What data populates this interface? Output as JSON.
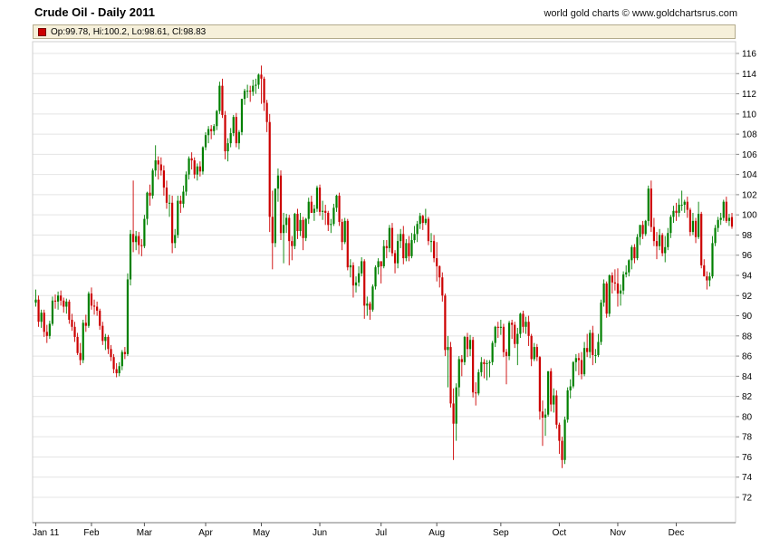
{
  "header": {
    "title": "Crude Oil - Daily 2011",
    "watermark": "world gold charts © www.goldchartsrus.com"
  },
  "legend": {
    "text": "Op:99.78, Hi:100.2, Lo:98.61, Cl:98.83",
    "swatch_color": "#cc0000"
  },
  "chart_data": {
    "type": "candlestick",
    "title": "Crude Oil - Daily 2011",
    "last_bar": {
      "open": 99.78,
      "high": 100.2,
      "low": 98.61,
      "close": 98.83
    },
    "y_axis": {
      "min": 72,
      "max": 116,
      "step": 2,
      "side": "right"
    },
    "x_axis": {
      "labels": [
        "Jan 11",
        "Feb",
        "Mar",
        "Apr",
        "May",
        "Jun",
        "Jul",
        "Aug",
        "Sep",
        "Oct",
        "Nov",
        "Dec"
      ],
      "month_start_indices": [
        0,
        20,
        39,
        61,
        81,
        102,
        124,
        144,
        167,
        188,
        209,
        230
      ]
    },
    "colors": {
      "up": "#008000",
      "down": "#cc0000",
      "grid": "#e4e4e4",
      "axis": "#7a7a7a",
      "border": "#cfcfcf",
      "text": "#000000"
    },
    "ohlc": [
      [
        91.3,
        92.6,
        90.9,
        91.6
      ],
      [
        91.6,
        92.0,
        88.9,
        89.4
      ],
      [
        89.4,
        90.6,
        88.8,
        90.3
      ],
      [
        90.3,
        90.6,
        87.9,
        88.4
      ],
      [
        88.4,
        89.1,
        87.3,
        88.0
      ],
      [
        88.0,
        89.5,
        87.7,
        89.2
      ],
      [
        89.2,
        91.9,
        89.0,
        91.5
      ],
      [
        91.5,
        92.1,
        90.7,
        91.4
      ],
      [
        91.4,
        92.4,
        90.6,
        92.0
      ],
      [
        92.0,
        92.5,
        91.0,
        91.5
      ],
      [
        91.5,
        91.8,
        90.3,
        90.9
      ],
      [
        90.9,
        91.7,
        90.2,
        91.4
      ],
      [
        91.4,
        91.6,
        89.2,
        89.6
      ],
      [
        89.6,
        90.2,
        88.5,
        88.9
      ],
      [
        88.9,
        89.4,
        87.4,
        87.9
      ],
      [
        87.9,
        88.3,
        86.1,
        86.3
      ],
      [
        86.3,
        87.3,
        85.1,
        85.6
      ],
      [
        85.6,
        89.6,
        85.3,
        89.3
      ],
      [
        89.3,
        90.1,
        88.4,
        89.0
      ],
      [
        89.0,
        92.4,
        88.8,
        92.2
      ],
      [
        92.2,
        92.8,
        90.6,
        91.0
      ],
      [
        91.0,
        91.6,
        90.1,
        90.9
      ],
      [
        90.9,
        91.4,
        90.0,
        90.5
      ],
      [
        90.5,
        90.7,
        88.6,
        89.0
      ],
      [
        89.0,
        89.4,
        87.1,
        87.5
      ],
      [
        87.5,
        88.2,
        86.6,
        87.9
      ],
      [
        87.9,
        88.1,
        86.2,
        86.7
      ],
      [
        86.7,
        87.1,
        85.5,
        85.9
      ],
      [
        85.9,
        86.2,
        84.3,
        84.7
      ],
      [
        84.7,
        85.3,
        83.9,
        84.3
      ],
      [
        84.3,
        85.4,
        84.0,
        85.0
      ],
      [
        85.0,
        86.6,
        84.6,
        86.4
      ],
      [
        86.4,
        86.9,
        85.7,
        86.2
      ],
      [
        86.2,
        94.2,
        86.0,
        93.6
      ],
      [
        93.6,
        98.5,
        93.0,
        98.1
      ],
      [
        98.1,
        103.4,
        96.3,
        97.3
      ],
      [
        97.3,
        98.4,
        96.5,
        97.9
      ],
      [
        97.9,
        98.3,
        96.1,
        97.0
      ],
      [
        97.0,
        97.6,
        95.9,
        96.9
      ],
      [
        96.9,
        100.0,
        96.7,
        99.6
      ],
      [
        99.6,
        102.3,
        99.0,
        102.2
      ],
      [
        102.2,
        103.0,
        100.9,
        101.9
      ],
      [
        101.9,
        104.6,
        101.6,
        104.4
      ],
      [
        104.4,
        106.9,
        103.8,
        105.4
      ],
      [
        105.4,
        105.8,
        103.5,
        105.0
      ],
      [
        105.0,
        105.7,
        103.9,
        104.4
      ],
      [
        104.4,
        104.9,
        101.9,
        102.7
      ],
      [
        102.7,
        103.4,
        100.6,
        101.2
      ],
      [
        101.2,
        102.0,
        99.8,
        101.2
      ],
      [
        101.2,
        101.9,
        96.2,
        97.2
      ],
      [
        97.2,
        98.6,
        96.7,
        98.0
      ],
      [
        98.0,
        101.9,
        97.7,
        101.4
      ],
      [
        101.4,
        101.9,
        100.2,
        101.1
      ],
      [
        101.1,
        102.9,
        100.7,
        102.3
      ],
      [
        102.3,
        104.3,
        101.9,
        104.0
      ],
      [
        104.0,
        105.8,
        103.5,
        105.6
      ],
      [
        105.6,
        106.2,
        104.5,
        105.4
      ],
      [
        105.4,
        105.7,
        103.6,
        104.0
      ],
      [
        104.0,
        105.1,
        103.4,
        104.8
      ],
      [
        104.8,
        105.3,
        103.8,
        104.3
      ],
      [
        104.3,
        106.8,
        104.0,
        106.7
      ],
      [
        106.7,
        108.2,
        106.4,
        107.9
      ],
      [
        107.9,
        108.8,
        107.1,
        108.5
      ],
      [
        108.5,
        108.9,
        107.5,
        108.3
      ],
      [
        108.3,
        109.0,
        107.9,
        108.8
      ],
      [
        108.8,
        110.4,
        108.4,
        110.3
      ],
      [
        110.3,
        113.2,
        110.0,
        112.8
      ],
      [
        112.8,
        113.5,
        109.6,
        109.9
      ],
      [
        109.9,
        110.3,
        105.5,
        106.3
      ],
      [
        106.3,
        107.6,
        105.3,
        107.1
      ],
      [
        107.1,
        108.6,
        106.7,
        108.1
      ],
      [
        108.1,
        109.9,
        107.8,
        109.7
      ],
      [
        109.7,
        110.1,
        106.7,
        107.1
      ],
      [
        107.1,
        108.4,
        106.5,
        108.2
      ],
      [
        108.2,
        111.5,
        107.9,
        111.5
      ],
      [
        111.5,
        112.5,
        110.9,
        112.3
      ],
      [
        112.3,
        112.9,
        111.6,
        112.3
      ],
      [
        112.3,
        112.8,
        111.2,
        112.2
      ],
      [
        112.2,
        113.4,
        111.8,
        112.8
      ],
      [
        112.8,
        113.5,
        112.0,
        112.9
      ],
      [
        112.9,
        114.0,
        112.5,
        113.9
      ],
      [
        113.9,
        114.8,
        111.0,
        113.5
      ],
      [
        113.5,
        113.7,
        110.3,
        111.1
      ],
      [
        111.1,
        111.4,
        108.2,
        109.2
      ],
      [
        109.2,
        110.0,
        98.3,
        99.8
      ],
      [
        99.8,
        102.4,
        94.6,
        97.2
      ],
      [
        97.2,
        102.6,
        96.8,
        102.6
      ],
      [
        102.6,
        104.6,
        101.3,
        103.9
      ],
      [
        103.9,
        104.4,
        97.5,
        98.2
      ],
      [
        98.2,
        100.2,
        95.2,
        99.0
      ],
      [
        99.0,
        100.1,
        98.2,
        99.7
      ],
      [
        99.7,
        100.0,
        95.0,
        97.4
      ],
      [
        97.4,
        97.9,
        95.5,
        96.9
      ],
      [
        96.9,
        100.2,
        96.6,
        100.1
      ],
      [
        100.1,
        100.6,
        97.6,
        98.4
      ],
      [
        98.4,
        100.2,
        97.9,
        99.5
      ],
      [
        99.5,
        99.8,
        96.5,
        97.7
      ],
      [
        97.7,
        99.7,
        97.4,
        99.6
      ],
      [
        99.6,
        101.7,
        99.1,
        101.3
      ],
      [
        101.3,
        101.9,
        100.2,
        100.2
      ],
      [
        100.2,
        101.0,
        99.4,
        100.6
      ],
      [
        100.6,
        102.9,
        100.3,
        102.7
      ],
      [
        102.7,
        103.0,
        99.9,
        100.3
      ],
      [
        100.3,
        101.4,
        99.5,
        100.4
      ],
      [
        100.4,
        101.0,
        99.0,
        100.2
      ],
      [
        100.2,
        100.4,
        98.4,
        99.0
      ],
      [
        99.0,
        99.6,
        98.2,
        99.1
      ],
      [
        99.1,
        101.1,
        98.9,
        100.7
      ],
      [
        100.7,
        102.0,
        100.3,
        101.9
      ],
      [
        101.9,
        102.2,
        98.9,
        99.3
      ],
      [
        99.3,
        99.6,
        96.5,
        97.3
      ],
      [
        97.3,
        99.7,
        97.1,
        99.4
      ],
      [
        99.4,
        99.6,
        94.5,
        94.8
      ],
      [
        94.8,
        95.6,
        93.8,
        95.0
      ],
      [
        95.0,
        95.3,
        91.8,
        93.0
      ],
      [
        93.0,
        93.9,
        92.3,
        93.3
      ],
      [
        93.3,
        94.9,
        92.9,
        94.2
      ],
      [
        94.2,
        95.8,
        93.9,
        95.4
      ],
      [
        95.4,
        95.6,
        89.7,
        91.0
      ],
      [
        91.0,
        91.9,
        90.0,
        91.2
      ],
      [
        91.2,
        91.4,
        89.6,
        90.6
      ],
      [
        90.6,
        93.1,
        90.4,
        92.9
      ],
      [
        92.9,
        95.0,
        92.6,
        94.8
      ],
      [
        94.8,
        95.7,
        94.1,
        95.4
      ],
      [
        95.4,
        95.4,
        93.2,
        94.9
      ],
      [
        94.9,
        97.5,
        94.7,
        96.9
      ],
      [
        96.9,
        97.5,
        95.7,
        96.7
      ],
      [
        96.7,
        99.0,
        96.3,
        98.7
      ],
      [
        98.7,
        99.2,
        95.9,
        96.2
      ],
      [
        96.2,
        96.5,
        94.2,
        95.2
      ],
      [
        95.2,
        98.1,
        94.7,
        97.4
      ],
      [
        97.4,
        98.6,
        96.7,
        98.1
      ],
      [
        98.1,
        98.9,
        95.1,
        95.7
      ],
      [
        95.7,
        97.6,
        95.4,
        97.2
      ],
      [
        97.2,
        97.9,
        95.4,
        95.9
      ],
      [
        95.9,
        98.2,
        95.7,
        97.5
      ],
      [
        97.5,
        98.9,
        97.2,
        98.1
      ],
      [
        98.1,
        99.4,
        97.3,
        99.1
      ],
      [
        99.1,
        100.2,
        98.6,
        99.9
      ],
      [
        99.9,
        100.0,
        98.5,
        99.2
      ],
      [
        99.2,
        100.6,
        99.0,
        99.6
      ],
      [
        99.6,
        99.8,
        97.0,
        97.4
      ],
      [
        97.4,
        98.2,
        96.3,
        97.4
      ],
      [
        97.4,
        98.0,
        95.3,
        95.7
      ],
      [
        95.7,
        97.3,
        93.4,
        94.9
      ],
      [
        94.9,
        95.0,
        92.8,
        93.8
      ],
      [
        93.8,
        94.3,
        91.4,
        92.0
      ],
      [
        92.0,
        92.2,
        86.0,
        86.6
      ],
      [
        86.6,
        88.0,
        82.9,
        86.9
      ],
      [
        86.9,
        87.4,
        80.9,
        81.3
      ],
      [
        81.3,
        82.8,
        75.7,
        79.3
      ],
      [
        79.3,
        83.3,
        77.6,
        82.9
      ],
      [
        82.9,
        86.0,
        82.0,
        85.7
      ],
      [
        85.7,
        86.1,
        84.0,
        85.4
      ],
      [
        85.4,
        88.0,
        85.1,
        87.9
      ],
      [
        87.9,
        88.3,
        85.9,
        86.7
      ],
      [
        86.7,
        88.1,
        86.0,
        87.6
      ],
      [
        87.6,
        87.9,
        81.9,
        82.4
      ],
      [
        82.4,
        83.4,
        81.1,
        82.3
      ],
      [
        82.3,
        84.7,
        82.1,
        84.4
      ],
      [
        84.4,
        85.9,
        84.0,
        85.4
      ],
      [
        85.4,
        85.7,
        83.8,
        85.2
      ],
      [
        85.2,
        85.6,
        83.6,
        85.3
      ],
      [
        85.3,
        85.6,
        83.9,
        85.4
      ],
      [
        85.4,
        87.5,
        85.1,
        87.3
      ],
      [
        87.3,
        89.0,
        86.9,
        88.9
      ],
      [
        88.9,
        89.4,
        87.8,
        88.8
      ],
      [
        88.8,
        89.6,
        88.1,
        88.9
      ],
      [
        88.9,
        89.2,
        85.9,
        86.4
      ],
      [
        86.4,
        86.7,
        83.2,
        86.0
      ],
      [
        86.0,
        89.5,
        85.6,
        89.3
      ],
      [
        89.3,
        89.6,
        87.7,
        89.1
      ],
      [
        89.1,
        89.4,
        86.8,
        87.2
      ],
      [
        87.2,
        88.8,
        85.1,
        88.2
      ],
      [
        88.2,
        90.3,
        87.8,
        90.2
      ],
      [
        90.2,
        90.5,
        88.3,
        88.9
      ],
      [
        88.9,
        89.9,
        88.2,
        89.4
      ],
      [
        89.4,
        90.0,
        87.0,
        88.0
      ],
      [
        88.0,
        88.2,
        85.0,
        85.7
      ],
      [
        85.7,
        87.3,
        85.5,
        86.9
      ],
      [
        86.9,
        87.2,
        85.5,
        85.9
      ],
      [
        85.9,
        86.0,
        79.7,
        80.5
      ],
      [
        80.5,
        81.6,
        77.1,
        79.9
      ],
      [
        79.9,
        80.8,
        78.1,
        80.2
      ],
      [
        80.2,
        84.5,
        80.0,
        84.5
      ],
      [
        84.5,
        84.8,
        80.5,
        81.2
      ],
      [
        81.2,
        82.8,
        80.4,
        82.1
      ],
      [
        82.1,
        82.6,
        78.8,
        79.2
      ],
      [
        79.2,
        79.4,
        76.3,
        77.6
      ],
      [
        77.6,
        78.0,
        74.9,
        75.7
      ],
      [
        75.7,
        80.0,
        75.3,
        79.7
      ],
      [
        79.7,
        82.9,
        79.4,
        82.6
      ],
      [
        82.6,
        83.7,
        81.8,
        83.0
      ],
      [
        83.0,
        85.5,
        82.8,
        85.4
      ],
      [
        85.4,
        86.2,
        84.5,
        85.8
      ],
      [
        85.8,
        86.3,
        84.1,
        85.6
      ],
      [
        85.6,
        86.4,
        83.7,
        84.2
      ],
      [
        84.2,
        87.4,
        84.0,
        86.8
      ],
      [
        86.8,
        88.2,
        85.9,
        86.4
      ],
      [
        86.4,
        88.6,
        85.8,
        88.3
      ],
      [
        88.3,
        89.0,
        85.1,
        86.1
      ],
      [
        86.1,
        86.7,
        85.3,
        86.1
      ],
      [
        86.1,
        88.2,
        85.9,
        87.4
      ],
      [
        87.4,
        91.6,
        87.1,
        91.3
      ],
      [
        91.3,
        93.6,
        90.9,
        93.2
      ],
      [
        93.2,
        93.4,
        89.8,
        90.2
      ],
      [
        90.2,
        94.1,
        89.9,
        94.0
      ],
      [
        94.0,
        94.3,
        92.2,
        93.3
      ],
      [
        93.3,
        94.6,
        92.5,
        93.2
      ],
      [
        93.2,
        94.7,
        90.9,
        92.2
      ],
      [
        92.2,
        93.1,
        91.0,
        92.5
      ],
      [
        92.5,
        94.4,
        92.1,
        94.1
      ],
      [
        94.1,
        95.0,
        93.8,
        94.3
      ],
      [
        94.3,
        95.6,
        93.9,
        95.5
      ],
      [
        95.5,
        97.0,
        94.6,
        96.8
      ],
      [
        96.8,
        97.1,
        95.2,
        95.7
      ],
      [
        95.7,
        98.1,
        95.5,
        97.8
      ],
      [
        97.8,
        99.0,
        97.0,
        99.0
      ],
      [
        99.0,
        99.4,
        97.6,
        98.1
      ],
      [
        98.1,
        99.5,
        97.9,
        99.4
      ],
      [
        99.4,
        102.9,
        98.9,
        102.6
      ],
      [
        102.6,
        103.4,
        98.3,
        98.8
      ],
      [
        98.8,
        99.7,
        96.9,
        97.4
      ],
      [
        97.4,
        98.3,
        95.6,
        96.9
      ],
      [
        96.9,
        98.6,
        96.5,
        98.0
      ],
      [
        98.0,
        98.2,
        95.9,
        96.2
      ],
      [
        96.2,
        97.9,
        95.3,
        96.8
      ],
      [
        96.8,
        98.7,
        96.5,
        98.2
      ],
      [
        98.2,
        100.0,
        97.7,
        99.8
      ],
      [
        99.8,
        100.9,
        99.2,
        100.4
      ],
      [
        100.4,
        101.2,
        99.4,
        100.2
      ],
      [
        100.2,
        101.6,
        99.8,
        101.0
      ],
      [
        101.0,
        102.4,
        100.4,
        101.0
      ],
      [
        101.0,
        101.5,
        100.2,
        101.3
      ],
      [
        101.3,
        101.8,
        99.7,
        100.5
      ],
      [
        100.5,
        100.7,
        97.9,
        98.3
      ],
      [
        98.3,
        100.2,
        98.0,
        99.4
      ],
      [
        99.4,
        99.7,
        97.2,
        97.8
      ],
      [
        97.8,
        101.3,
        97.6,
        100.1
      ],
      [
        100.1,
        100.3,
        94.7,
        95.0
      ],
      [
        95.0,
        95.6,
        93.9,
        93.9
      ],
      [
        93.9,
        94.4,
        92.6,
        93.5
      ],
      [
        93.5,
        94.3,
        92.9,
        93.9
      ],
      [
        93.9,
        97.9,
        93.7,
        97.2
      ],
      [
        97.2,
        99.0,
        96.9,
        98.7
      ],
      [
        98.7,
        99.8,
        98.3,
        99.5
      ],
      [
        99.5,
        100.2,
        99.0,
        99.7
      ],
      [
        99.7,
        101.5,
        99.4,
        101.3
      ],
      [
        101.3,
        101.8,
        99.2,
        99.4
      ],
      [
        99.4,
        100.1,
        98.9,
        99.7
      ],
      [
        99.78,
        100.2,
        98.61,
        98.83
      ]
    ]
  }
}
